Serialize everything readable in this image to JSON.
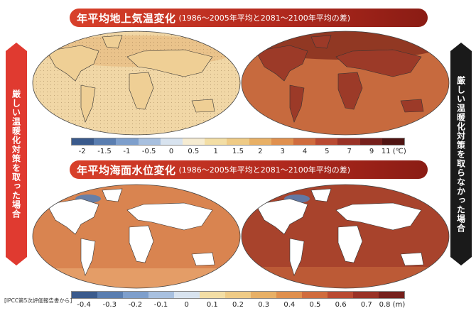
{
  "title_temp": {
    "main": "年平均地上気温変化",
    "sub": "(1986〜2005年平均と2081〜2100年平均の差)"
  },
  "title_sea": {
    "main": "年平均海面水位変化",
    "sub": "(1986〜2005年平均と2081〜2100年平均の差)"
  },
  "side_left": "厳しい温暖化対策を取った場合",
  "side_right": "厳しい温暖化対策を取らなかった場合",
  "legend_temp": {
    "ticks": [
      "-2",
      "-1.5",
      "-1",
      "-0.5",
      "0",
      "0.5",
      "1",
      "1.5",
      "2",
      "3",
      "4",
      "5",
      "7",
      "9",
      "11 (℃)"
    ],
    "colors": [
      "#3a5a8c",
      "#5a7eb0",
      "#7e9fcc",
      "#a8c0df",
      "#d8e3ef",
      "#f6ecd2",
      "#f3dea5",
      "#efcb86",
      "#e8b066",
      "#e0904e",
      "#d06c3e",
      "#b94a32",
      "#9a3226",
      "#76201c",
      "#4f1412"
    ]
  },
  "legend_sea": {
    "ticks": [
      "-0.4",
      "-0.3",
      "-0.2",
      "-0.1",
      "0",
      "0.1",
      "0.2",
      "0.3",
      "0.4",
      "0.5",
      "0.6",
      "0.7",
      "0.8 (m)"
    ],
    "colors": [
      "#3a5a8c",
      "#5a7eb0",
      "#7e9fcc",
      "#a8c0df",
      "#d8e3ef",
      "#f3dea5",
      "#efcb86",
      "#e8b066",
      "#e0904e",
      "#d06c3e",
      "#b94a32",
      "#9a3226",
      "#76201c"
    ]
  },
  "maps": {
    "temp_mild": {
      "ocean": "#f1d7a6",
      "land": "#efcf95",
      "accent": "#e6b679"
    },
    "temp_severe": {
      "ocean": "#c76a3e",
      "land": "#9c3a28",
      "accent": "#b6512f"
    },
    "sea_mild": {
      "ocean": "#d98450",
      "land": "#ffffff",
      "accent": "#c96a3e"
    },
    "sea_severe": {
      "ocean": "#a8432c",
      "land": "#ffffff",
      "accent": "#8c3022"
    }
  },
  "source": "[IPCC第5次評価報告書から]"
}
